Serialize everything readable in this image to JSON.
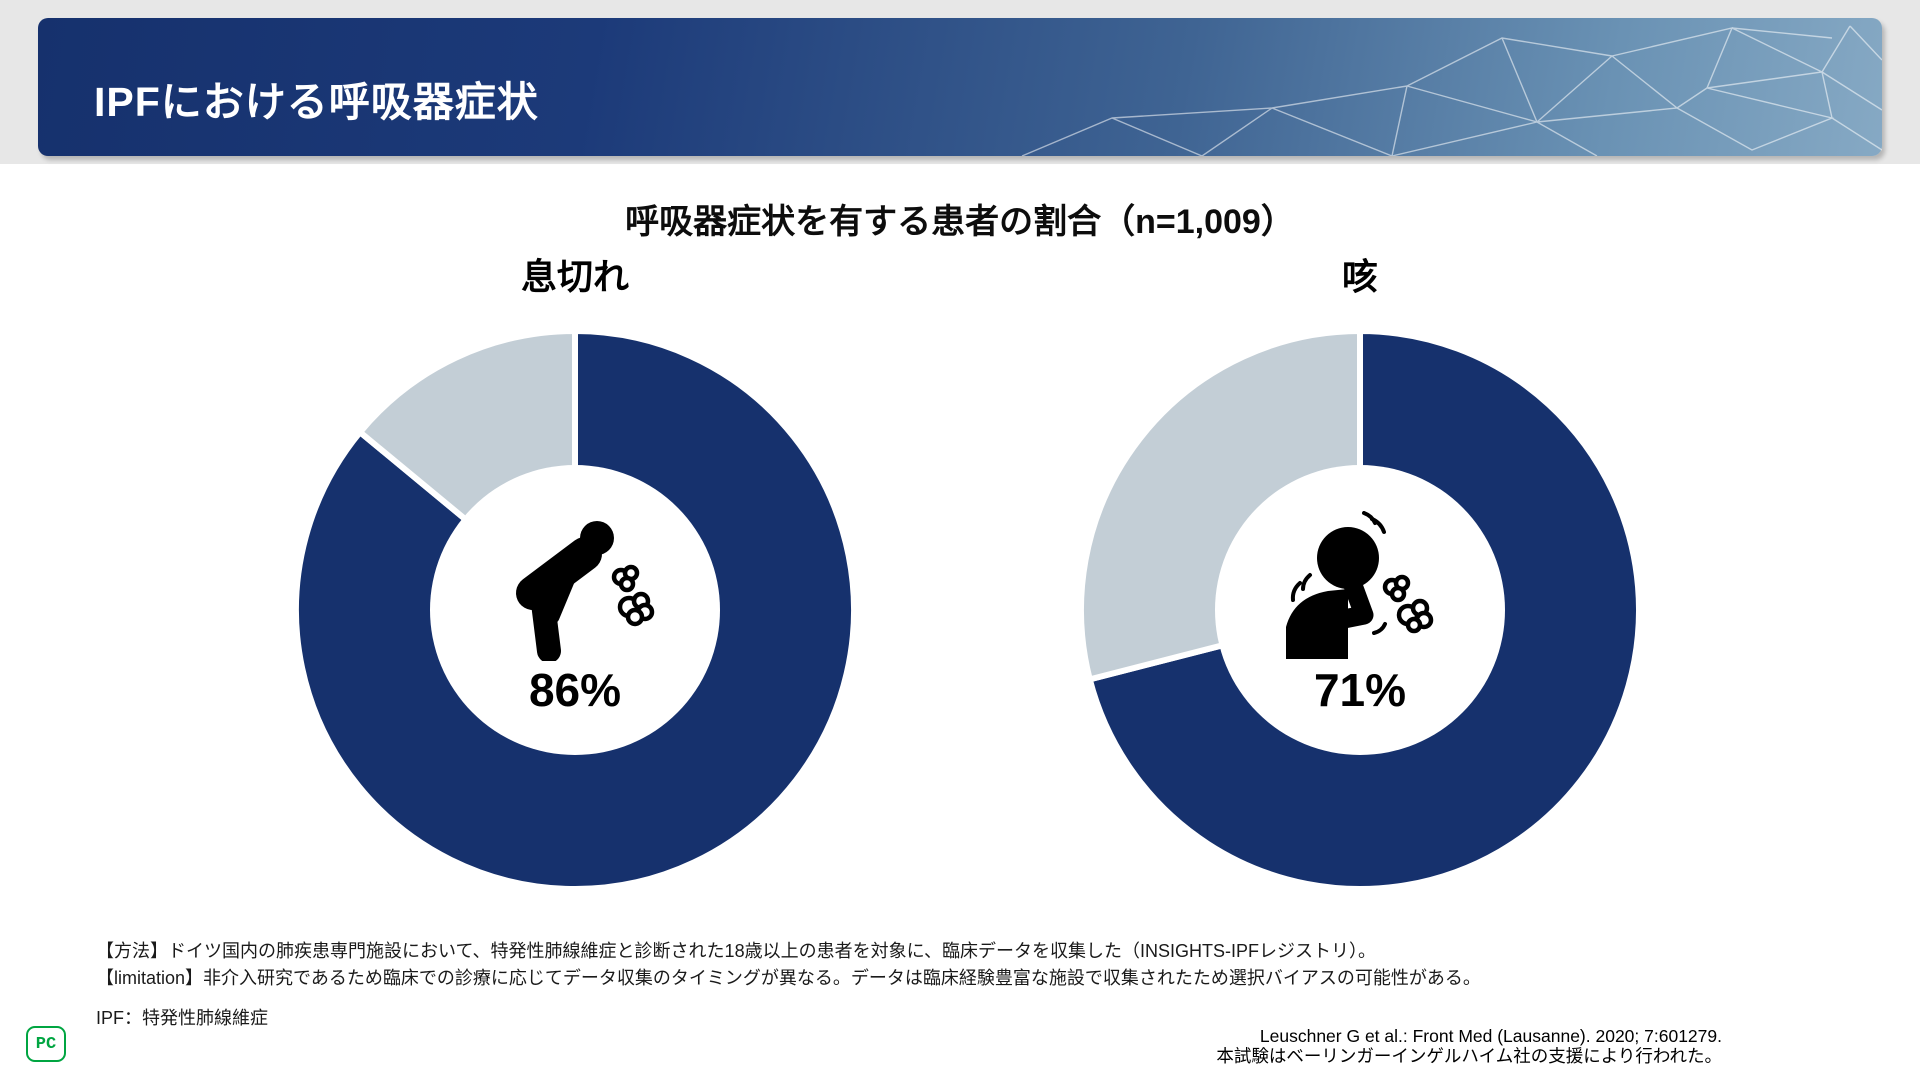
{
  "header": {
    "title": "IPFにおける呼吸器症状"
  },
  "chart_data": {
    "type": "pie",
    "subtype": "donut-pair",
    "title": "呼吸器症状を有する患者の割合（n=1,009）",
    "sample_size": "n=1,009",
    "legend": "none",
    "colors": {
      "value": "#16316d",
      "remainder": "#c3ced6",
      "gap": "#ffffff"
    },
    "donuts": [
      {
        "label": "息切れ",
        "value": 86,
        "remainder": 14,
        "value_label": "86%",
        "icon": "breathless-person-icon"
      },
      {
        "label": "咳",
        "value": 71,
        "remainder": 29,
        "value_label": "71%",
        "icon": "coughing-person-icon"
      }
    ]
  },
  "footnotes": {
    "method": "【方法】ドイツ国内の肺疾患専門施設において、特発性肺線維症と診断された18歳以上の患者を対象に、臨床データを収集した（INSIGHTS-IPFレジストリ）。",
    "limitation": "【limitation】非介入研究であるため臨床での診療に応じてデータ収集のタイミングが異なる。データは臨床経験豊富な施設で収集されたため選択バイアスの可能性がある。",
    "abbreviation": "IPF：特発性肺線維症"
  },
  "citation": {
    "reference": "Leuschner G et al.: Front Med (Lausanne). 2020; 7:601279.",
    "sponsor": "本試験はベーリンガーインゲルハイム社の支援により行われた。"
  },
  "logo": {
    "text": "PC",
    "color": "#00a541"
  }
}
